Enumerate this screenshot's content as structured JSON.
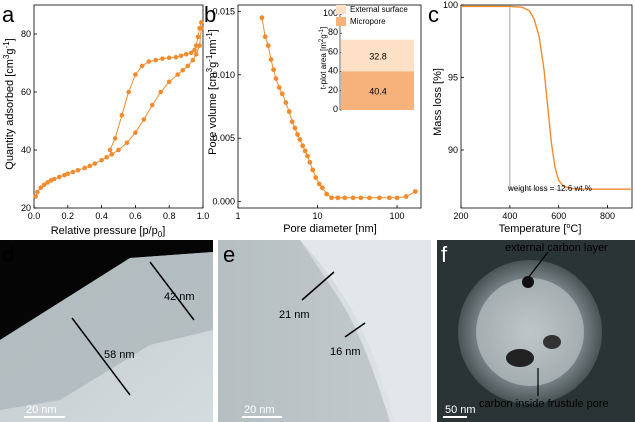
{
  "panels": {
    "a": {
      "letter": "a"
    },
    "b": {
      "letter": "b"
    },
    "c": {
      "letter": "c"
    },
    "d": {
      "letter": "d",
      "annotations": [
        "42 nm",
        "58 nm"
      ],
      "scale_bar": "20 nm"
    },
    "e": {
      "letter": "e",
      "annotations": [
        "21 nm",
        "16 nm"
      ],
      "scale_bar": "20 nm"
    },
    "f": {
      "letter": "f",
      "annotations": [
        "external carbon layer",
        "carbon inside frustule pore"
      ],
      "scale_bar": "50 nm"
    }
  },
  "colors": {
    "series": "#f08c2e",
    "external_surface": "#fde0c5",
    "micropore": "#f6b27a"
  },
  "chart_data": [
    {
      "id": "a",
      "type": "line",
      "xlabel": "Relative pressure [p/p",
      "xlabel_sub": "0",
      "xlabel_end": "]",
      "ylabel": "Quantity adsorbed [cm",
      "ylabel_sup1": "3",
      "ylabel_mid": "g",
      "ylabel_sup2": "-1",
      "ylabel_end": "]",
      "xlim": [
        0,
        1.0
      ],
      "ylim": [
        20,
        90
      ],
      "xticks": [
        "0.0",
        "0.2",
        "0.4",
        "0.6",
        "0.8",
        "1.0"
      ],
      "yticks": [
        "20",
        "40",
        "60",
        "80"
      ],
      "series": [
        {
          "x": [
            0.01,
            0.02,
            0.04,
            0.06,
            0.08,
            0.1,
            0.12,
            0.15,
            0.18,
            0.2,
            0.23,
            0.26,
            0.3,
            0.33,
            0.36,
            0.4,
            0.43,
            0.46,
            0.5,
            0.55,
            0.6,
            0.65,
            0.7,
            0.75,
            0.8,
            0.85,
            0.88,
            0.91,
            0.94,
            0.96,
            0.98,
            0.99
          ],
          "y": [
            24,
            25.5,
            27,
            28,
            28.8,
            29.5,
            30,
            30.7,
            31.3,
            31.8,
            32.4,
            33,
            33.8,
            34.5,
            35.3,
            36.5,
            37.5,
            38.5,
            40,
            42.5,
            46,
            50.5,
            55.5,
            60,
            63.5,
            66,
            67.5,
            69,
            71,
            73,
            76,
            82
          ]
        },
        {
          "x": [
            0.99,
            0.98,
            0.97,
            0.96,
            0.95,
            0.93,
            0.9,
            0.87,
            0.84,
            0.8,
            0.76,
            0.72,
            0.68,
            0.64,
            0.6,
            0.56,
            0.52,
            0.48,
            0.45
          ],
          "y": [
            84,
            82,
            79,
            76,
            74.5,
            73.5,
            73,
            72.5,
            72,
            71.8,
            71.5,
            71,
            70.5,
            69,
            66,
            60,
            52,
            44,
            40
          ]
        }
      ]
    },
    {
      "id": "b",
      "type": "line",
      "xlabel": "Pore diameter [nm]",
      "ylabel": "Pore volume [cm",
      "ylabel_sup1": "3",
      "ylabel_mid": "g",
      "ylabel_sup2": "-1",
      "ylabel_mid2": "nm",
      "ylabel_sup3": "-1",
      "ylabel_end": "]",
      "xscale": "log",
      "xlim": [
        1,
        200
      ],
      "ylim": [
        -0.0005,
        0.0155
      ],
      "xticks": [
        "1",
        "10",
        "100"
      ],
      "yticks": [
        "0.000",
        "0.005",
        "0.010",
        "0.015"
      ],
      "series": [
        {
          "x": [
            2.0,
            2.2,
            2.4,
            2.6,
            2.8,
            3.0,
            3.3,
            3.6,
            4.0,
            4.4,
            4.8,
            5.2,
            5.6,
            6.0,
            6.5,
            7.0,
            7.5,
            8.0,
            8.7,
            9.5,
            10.5,
            11.5,
            13,
            15,
            18,
            22,
            28,
            35,
            45,
            60,
            80,
            100,
            130,
            170
          ],
          "y": [
            0.0145,
            0.013,
            0.0123,
            0.0112,
            0.0104,
            0.0097,
            0.009,
            0.0085,
            0.0078,
            0.0071,
            0.0063,
            0.0058,
            0.0053,
            0.0049,
            0.0044,
            0.004,
            0.0036,
            0.0031,
            0.0025,
            0.0019,
            0.0014,
            0.0011,
            0.0006,
            0.0003,
            0.0003,
            0.0003,
            0.0003,
            0.0003,
            0.0003,
            0.0003,
            0.0003,
            0.0003,
            0.0004,
            0.0008
          ]
        }
      ]
    },
    {
      "id": "b-inset",
      "type": "bar",
      "stacked": true,
      "ylabel": "t-plot area [m",
      "ylabel_sup": "2",
      "ylabel_mid": "g",
      "ylabel_sup2": "-1",
      "ylabel_end": "]",
      "ylim": [
        0,
        100
      ],
      "yticks": [
        "0",
        "20",
        "40",
        "60",
        "80",
        "100"
      ],
      "legend": [
        "External surface",
        "Micropore"
      ],
      "legend_placement": "top",
      "series": [
        {
          "name": "Micropore",
          "values": [
            40.4
          ],
          "label": "40.4"
        },
        {
          "name": "External surface",
          "values": [
            32.8
          ],
          "label": "32.8"
        }
      ]
    },
    {
      "id": "c",
      "type": "line",
      "xlabel": "Temperature [",
      "xlabel_sup": "o",
      "xlabel_end": "C]",
      "ylabel": "Mass loss [%]",
      "xlim": [
        200,
        900
      ],
      "ylim": [
        86,
        100
      ],
      "xticks": [
        "200",
        "400",
        "600",
        "800"
      ],
      "yticks": [
        "90",
        "95",
        "100"
      ],
      "annotation": "weight loss = 12.6 wt.%",
      "series": [
        {
          "x": [
            200,
            300,
            400,
            450,
            480,
            500,
            520,
            540,
            555,
            570,
            585,
            600,
            620,
            650,
            700,
            800,
            900
          ],
          "y": [
            99.9,
            99.9,
            99.9,
            99.85,
            99.6,
            99.0,
            97.8,
            95.5,
            93.0,
            90.5,
            88.8,
            87.9,
            87.5,
            87.35,
            87.3,
            87.3,
            87.3
          ]
        }
      ]
    }
  ]
}
